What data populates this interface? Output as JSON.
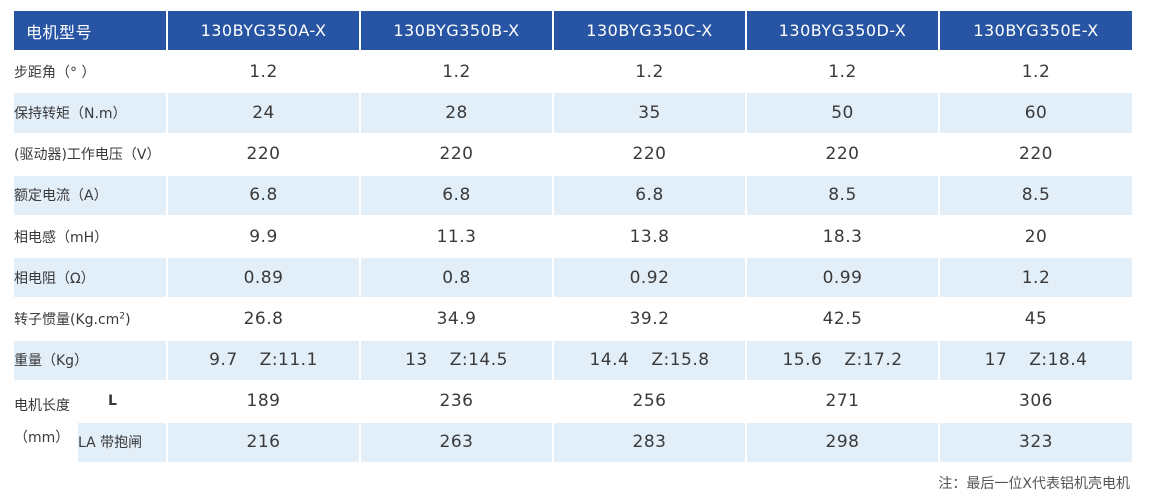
{
  "header": {
    "label": "电机型号",
    "models": [
      "130BYG350A-X",
      "130BYG350B-X",
      "130BYG350C-X",
      "130BYG350D-X",
      "130BYG350E-X"
    ]
  },
  "rows": [
    {
      "label": "步距角（°  ）",
      "values": [
        "1.2",
        "1.2",
        "1.2",
        "1.2",
        "1.2"
      ]
    },
    {
      "label": "保持转矩（N.m）",
      "values": [
        "24",
        "28",
        "35",
        "50",
        "60"
      ]
    },
    {
      "label": "(驱动器)工作电压（V）",
      "values": [
        "220",
        "220",
        "220",
        "220",
        "220"
      ]
    },
    {
      "label": "额定电流（A）",
      "values": [
        "6.8",
        "6.8",
        "6.8",
        "8.5",
        "8.5"
      ]
    },
    {
      "label": "相电感（mH）",
      "values": [
        "9.9",
        "11.3",
        "13.8",
        "18.3",
        "20"
      ]
    },
    {
      "label": "相电阻（Ω）",
      "values": [
        "0.89",
        "0.8",
        "0.92",
        "0.99",
        "1.2"
      ]
    },
    {
      "label_main": "转子惯量(Kg.cm",
      "label_sup": "2",
      "label_end": ")",
      "values": [
        "26.8",
        "34.9",
        "39.2",
        "42.5",
        "45"
      ]
    }
  ],
  "weight": {
    "label": "重量（Kg）",
    "values": [
      {
        "w": "9.7",
        "z": "Z:11.1"
      },
      {
        "w": "13",
        "z": "Z:14.5"
      },
      {
        "w": "14.4",
        "z": "Z:15.8"
      },
      {
        "w": "15.6",
        "z": "Z:17.2"
      },
      {
        "w": "17",
        "z": "Z:18.4"
      }
    ]
  },
  "length": {
    "label_line1": "电机长度",
    "label_line2": "（mm）",
    "rows": [
      {
        "label": "L",
        "values": [
          "189",
          "236",
          "256",
          "271",
          "306"
        ]
      },
      {
        "label": "LA 带抱闸",
        "values": [
          "216",
          "263",
          "283",
          "298",
          "323"
        ]
      }
    ]
  },
  "note": "注：最后一位X代表铝机壳电机"
}
